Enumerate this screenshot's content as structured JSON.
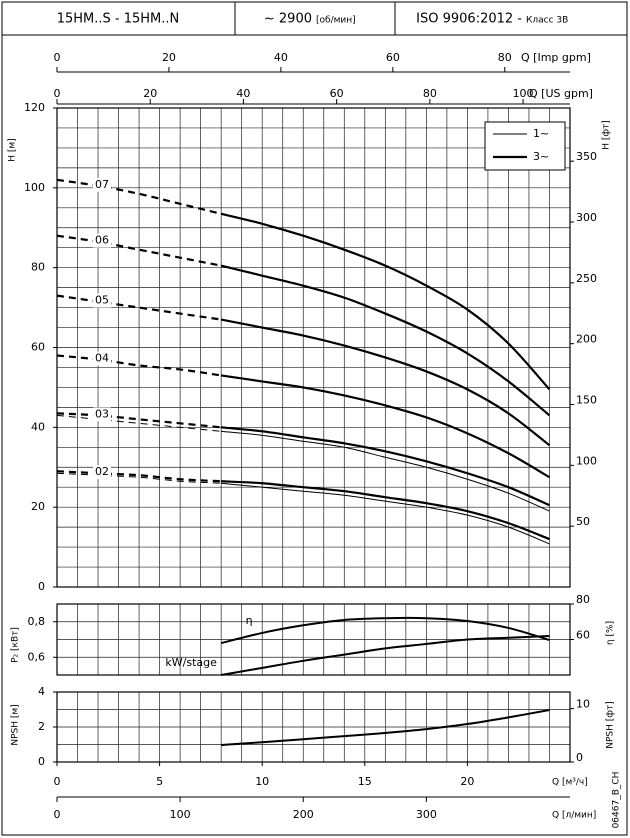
{
  "header": {
    "model": "15HM..S - 15HM..N",
    "speed": "~ 2900",
    "speed_unit": "[об/мин]",
    "standard": "ISO 9906:2012 -",
    "class": "Класс 3B"
  },
  "footer_code": "06467_B_CH",
  "chart_data": [
    {
      "type": "line",
      "ylabel": "H [м]",
      "y2label": "H [фт]",
      "xlim": [
        0,
        25
      ],
      "ylim": [
        0,
        120
      ],
      "yticks": [
        0,
        20,
        40,
        60,
        80,
        100,
        120
      ],
      "y2lim": [
        0,
        393.7
      ],
      "y2ticks": [
        50,
        100,
        150,
        200,
        250,
        300,
        350
      ],
      "grid": true,
      "grid_step_x": 1,
      "grid_step_y": 5,
      "x2_axes": [
        {
          "label": "Q [Imp gpm]",
          "lim": [
            0,
            91.65
          ],
          "ticks": [
            0,
            20,
            40,
            60,
            80
          ]
        },
        {
          "label": "Q [US gpm]",
          "lim": [
            0,
            110.07
          ],
          "ticks": [
            0,
            20,
            40,
            60,
            80,
            100
          ]
        }
      ],
      "legend": [
        {
          "label": "1~",
          "line_width": 1
        },
        {
          "label": "3~",
          "line_width": 2.2
        }
      ],
      "legend_position": "upper right",
      "dashed_until": 8,
      "x": [
        0,
        2,
        4,
        6,
        8,
        10,
        12,
        14,
        16,
        18,
        20,
        22,
        24
      ],
      "series": [
        {
          "name": "07",
          "color": "#000000",
          "values": [
            102,
            100.5,
            98.5,
            96,
            93.5,
            91,
            88,
            84.5,
            80.5,
            75.5,
            69.5,
            61,
            49.5
          ]
        },
        {
          "name": "06",
          "color": "#000000",
          "values": [
            88,
            86.5,
            84.5,
            82.5,
            80.5,
            78,
            75.5,
            72.5,
            68.5,
            64,
            58.5,
            51.5,
            43
          ]
        },
        {
          "name": "05",
          "color": "#000000",
          "values": [
            73,
            71.5,
            70,
            68.5,
            67,
            65,
            63,
            60.5,
            57.5,
            54,
            49.5,
            43.5,
            35.5
          ]
        },
        {
          "name": "04",
          "color": "#000000",
          "values": [
            58,
            57,
            55.5,
            54.5,
            53,
            51.5,
            50,
            48,
            45.5,
            42.5,
            38.5,
            33.5,
            27.5
          ]
        },
        {
          "name": "03",
          "color": "#000000",
          "values": [
            43.5,
            43,
            42,
            41,
            40,
            39,
            37.5,
            36,
            34,
            31.5,
            28.5,
            25,
            20.5
          ],
          "values_1ph": [
            43,
            42,
            41,
            40,
            39,
            38,
            36.5,
            35,
            32.5,
            30,
            27,
            23.5,
            19
          ]
        },
        {
          "name": "02",
          "color": "#000000",
          "values": [
            29,
            28.5,
            28,
            27,
            26.5,
            26,
            25,
            24,
            22.5,
            21,
            19,
            16,
            12
          ],
          "values_1ph": [
            28.5,
            28,
            27.5,
            26.5,
            26,
            25,
            24,
            23,
            21.5,
            20,
            18,
            15,
            10.8
          ]
        }
      ]
    },
    {
      "type": "line",
      "ylabel": "P₂ [кВт]",
      "y2label": "η [%]",
      "xlim": [
        0,
        25
      ],
      "ylim": [
        0.5,
        0.9
      ],
      "yticks": [
        {
          "value": 0.6,
          "label": "0,6"
        },
        {
          "value": 0.8,
          "label": "0,8"
        }
      ],
      "y2lim": [
        40,
        80
      ],
      "y2ticks": [
        60,
        80
      ],
      "grid": true,
      "grid_step_x": 1,
      "grid_step_y": 0.1,
      "x": [
        8,
        10,
        12,
        14,
        16,
        18,
        20,
        22,
        24
      ],
      "series": [
        {
          "name": "kW/stage",
          "color": "#000000",
          "values": [
            0.5,
            0.54,
            0.58,
            0.615,
            0.65,
            0.675,
            0.7,
            0.71,
            0.72
          ]
        },
        {
          "name": "η",
          "color": "#000000",
          "axis": "y2",
          "values": [
            58,
            63.7,
            68,
            71,
            72,
            72,
            70.4,
            66.5,
            59.7
          ]
        }
      ]
    },
    {
      "type": "line",
      "ylabel": "NPSH [м]",
      "y2label": "NPSH [фт]",
      "xlabel": "Q [м³/ч]",
      "xlim": [
        0,
        25
      ],
      "xticks": [
        0,
        5,
        10,
        15,
        20
      ],
      "ylim": [
        0,
        4
      ],
      "yticks": [
        0,
        2,
        4
      ],
      "y2lim": [
        0,
        13.12
      ],
      "y2ticks": [
        0,
        10
      ],
      "grid": true,
      "grid_step_x": 1,
      "grid_step_y": 1,
      "x3_axis": {
        "label": "Q [л/мин]",
        "lim": [
          0,
          416.67
        ],
        "ticks": [
          0,
          100,
          200,
          300
        ]
      },
      "x": [
        8,
        10,
        12,
        14,
        16,
        18,
        20,
        22,
        24
      ],
      "series": [
        {
          "color": "#000000",
          "values": [
            0.97,
            1.13,
            1.3,
            1.48,
            1.66,
            1.88,
            2.17,
            2.55,
            2.97
          ]
        }
      ]
    }
  ]
}
